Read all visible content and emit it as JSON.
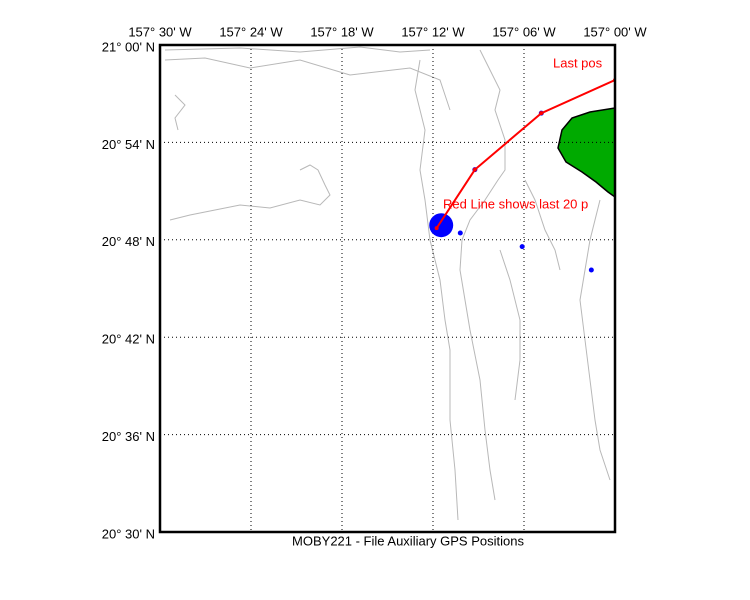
{
  "chart_data": {
    "type": "map",
    "title": "MOBY221 - File Auxiliary GPS Positions",
    "xlim": [
      -157.5,
      -157.0
    ],
    "ylim": [
      20.5,
      21.0
    ],
    "xticks": [
      {
        "value": -157.5,
        "label": "157° 30' W"
      },
      {
        "value": -157.4,
        "label": "157° 24' W"
      },
      {
        "value": -157.3,
        "label": "157° 18' W"
      },
      {
        "value": -157.2,
        "label": "157° 12' W"
      },
      {
        "value": -157.1,
        "label": "157° 06' W"
      },
      {
        "value": -157.0,
        "label": "157° 00' W"
      }
    ],
    "yticks": [
      {
        "value": 20.5,
        "label": "20° 30' N"
      },
      {
        "value": 20.6,
        "label": "20° 36' N"
      },
      {
        "value": 20.7,
        "label": "20° 42' N"
      },
      {
        "value": 20.8,
        "label": "20° 48' N"
      },
      {
        "value": 20.9,
        "label": "20° 54' N"
      },
      {
        "value": 21.0,
        "label": "21° 00' N"
      }
    ],
    "grid": true,
    "annotations": [
      "Last pos",
      "Red Line shows last 20 p"
    ],
    "series": [
      {
        "color": "#ff0000",
        "style": "line",
        "x": [
          -157.196,
          -157.154,
          -157.081,
          -157.0
        ],
        "values": [
          20.812,
          20.872,
          20.93,
          20.964
        ]
      },
      {
        "color": "#0000ff",
        "style": "dots",
        "x": [
          -157.17,
          -157.102,
          -157.026,
          -157.154,
          -157.081
        ],
        "values": [
          20.807,
          20.793,
          20.769,
          20.872,
          20.93
        ]
      },
      {
        "color": "#0000ff",
        "style": "large-dot",
        "x": [
          -157.191
        ],
        "values": [
          20.815
        ]
      }
    ]
  }
}
